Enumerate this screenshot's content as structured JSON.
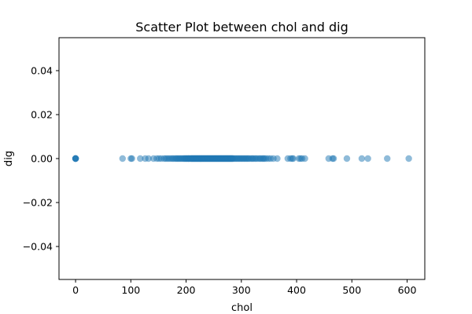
{
  "chart_data": {
    "type": "scatter",
    "title": "Scatter Plot between chol and dig",
    "xlabel": "chol",
    "ylabel": "dig",
    "xlim": [
      -30,
      632
    ],
    "ylim": [
      -0.055,
      0.055
    ],
    "xticks": [
      0,
      100,
      200,
      300,
      400,
      500,
      600
    ],
    "xtick_labels": [
      "0",
      "100",
      "200",
      "300",
      "400",
      "500",
      "600"
    ],
    "yticks": [
      -0.04,
      -0.02,
      0.0,
      0.02,
      0.04
    ],
    "ytick_labels": [
      "−0.04",
      "−0.02",
      "0.00",
      "0.02",
      "0.04"
    ],
    "grid": false,
    "legend": "none",
    "marker_color": "#1f77b4",
    "marker_alpha": 0.5,
    "series": [
      {
        "x": [
          0,
          0,
          0,
          0,
          0,
          85,
          100,
          102,
          117,
          126,
          132,
          141,
          147,
          151,
          155,
          160,
          163,
          166,
          169,
          172,
          175,
          177,
          180,
          182,
          184,
          186,
          188,
          190,
          192,
          194,
          196,
          197,
          199,
          200,
          201,
          203,
          204,
          205,
          206,
          208,
          209,
          210,
          211,
          212,
          213,
          214,
          215,
          216,
          217,
          218,
          219,
          220,
          221,
          222,
          223,
          224,
          225,
          226,
          227,
          228,
          229,
          230,
          231,
          232,
          233,
          234,
          235,
          236,
          237,
          238,
          239,
          240,
          241,
          242,
          243,
          244,
          245,
          246,
          247,
          248,
          249,
          250,
          251,
          252,
          253,
          254,
          255,
          256,
          257,
          258,
          259,
          260,
          261,
          262,
          263,
          264,
          265,
          266,
          267,
          268,
          269,
          270,
          271,
          272,
          273,
          274,
          275,
          276,
          277,
          278,
          279,
          280,
          281,
          282,
          283,
          284,
          285,
          287,
          289,
          291,
          293,
          295,
          297,
          299,
          301,
          303,
          305,
          307,
          309,
          311,
          313,
          315,
          318,
          320,
          322,
          325,
          327,
          330,
          333,
          335,
          338,
          340,
          342,
          345,
          349,
          353,
          358,
          365,
          384,
          389,
          392,
          394,
          404,
          407,
          410,
          415,
          458,
          465,
          467,
          491,
          518,
          529,
          564,
          603
        ],
        "y": [
          0,
          0,
          0,
          0,
          0,
          0,
          0,
          0,
          0,
          0,
          0,
          0,
          0,
          0,
          0,
          0,
          0,
          0,
          0,
          0,
          0,
          0,
          0,
          0,
          0,
          0,
          0,
          0,
          0,
          0,
          0,
          0,
          0,
          0,
          0,
          0,
          0,
          0,
          0,
          0,
          0,
          0,
          0,
          0,
          0,
          0,
          0,
          0,
          0,
          0,
          0,
          0,
          0,
          0,
          0,
          0,
          0,
          0,
          0,
          0,
          0,
          0,
          0,
          0,
          0,
          0,
          0,
          0,
          0,
          0,
          0,
          0,
          0,
          0,
          0,
          0,
          0,
          0,
          0,
          0,
          0,
          0,
          0,
          0,
          0,
          0,
          0,
          0,
          0,
          0,
          0,
          0,
          0,
          0,
          0,
          0,
          0,
          0,
          0,
          0,
          0,
          0,
          0,
          0,
          0,
          0,
          0,
          0,
          0,
          0,
          0,
          0,
          0,
          0,
          0,
          0,
          0,
          0,
          0,
          0,
          0,
          0,
          0,
          0,
          0,
          0,
          0,
          0,
          0,
          0,
          0,
          0,
          0,
          0,
          0,
          0,
          0,
          0,
          0,
          0,
          0,
          0,
          0,
          0,
          0,
          0,
          0,
          0,
          0,
          0,
          0,
          0,
          0,
          0,
          0,
          0,
          0,
          0,
          0,
          0,
          0,
          0,
          0,
          0
        ]
      }
    ]
  }
}
